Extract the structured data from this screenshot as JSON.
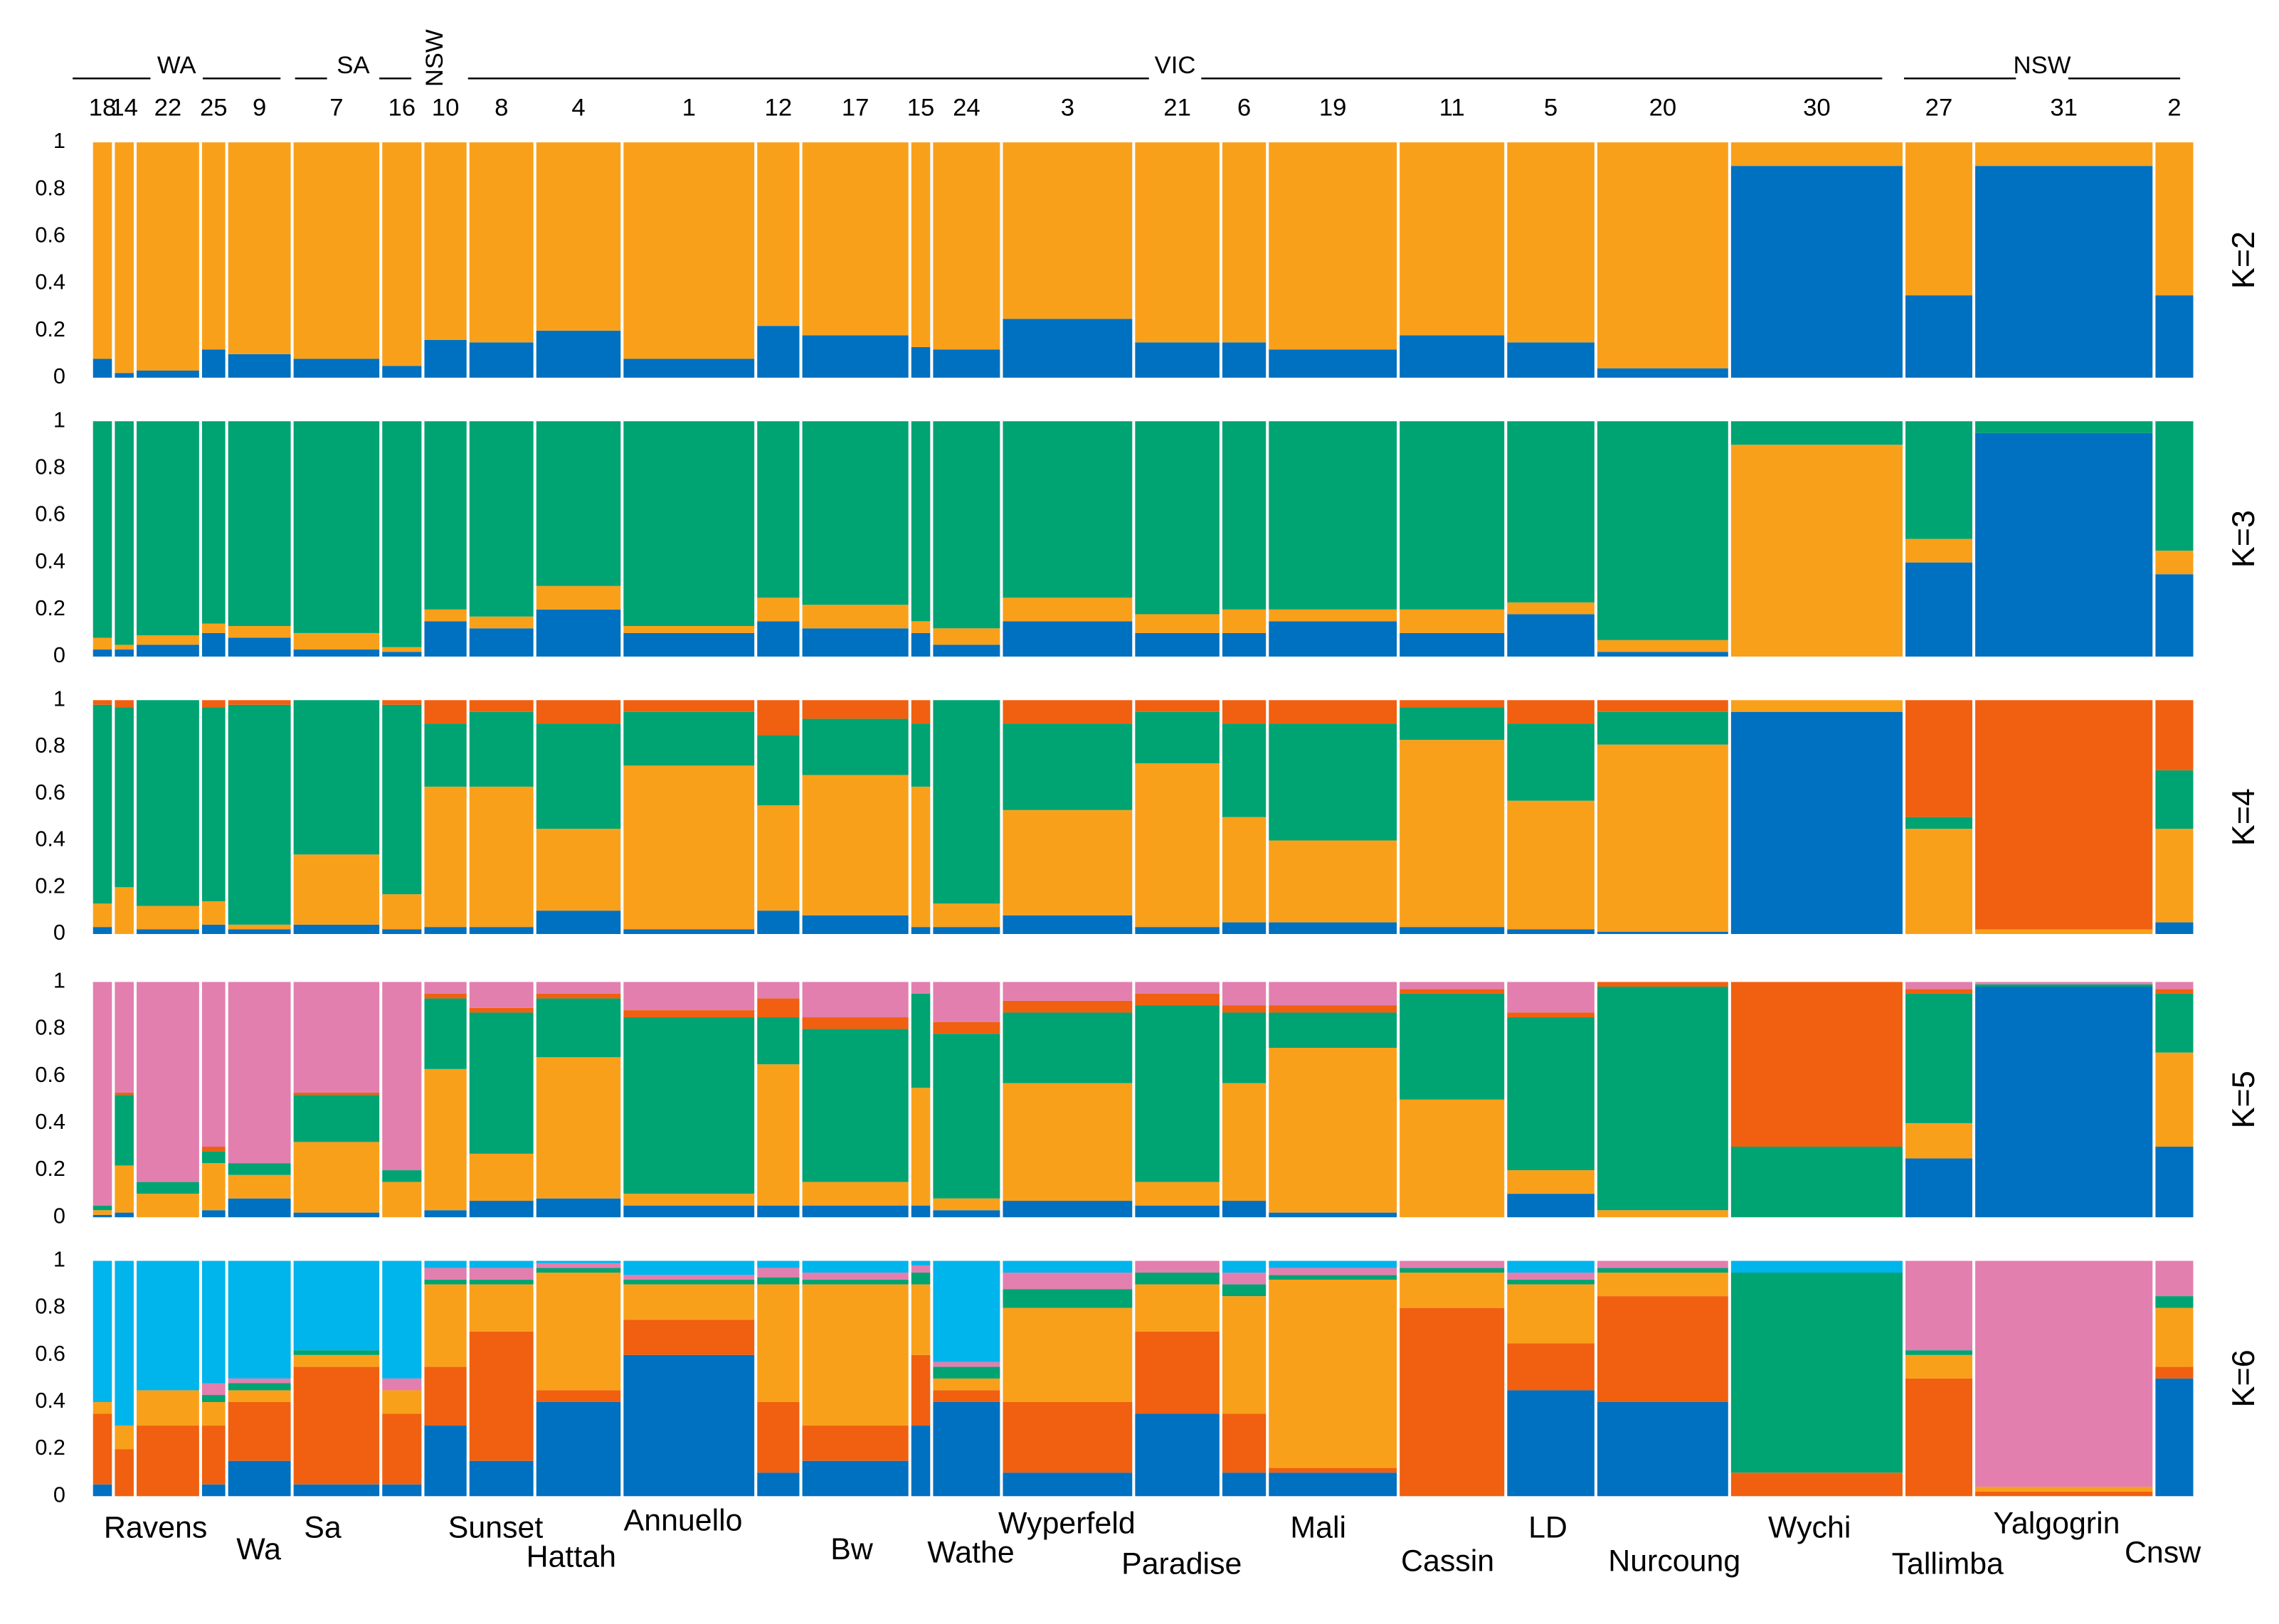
{
  "chart_data": {
    "type": "structure",
    "categories": [
      "18",
      "14",
      "22",
      "25",
      "9",
      "7",
      "16",
      "10",
      "8",
      "4",
      "1",
      "12",
      "17",
      "15",
      "24",
      "3",
      "21",
      "6",
      "19",
      "11",
      "5",
      "20",
      "30",
      "27",
      "31",
      "2"
    ],
    "regions": [
      "WA",
      "SA",
      "NSW",
      "VIC",
      "NSW"
    ],
    "sites": [
      "Ravens",
      "Wa",
      "Sa",
      "Sunset",
      "Hattah",
      "Annuello",
      "Bw",
      "Wathe",
      "Wyperfeld",
      "Paradise",
      "Mali",
      "Cassin",
      "LD",
      "Nurcoung",
      "Wychi",
      "Tallimba",
      "Yalgogrin",
      "Cnsw"
    ],
    "ylim": [
      0,
      1
    ],
    "yticks": [
      0,
      0.2,
      0.4,
      0.6,
      0.8,
      1
    ],
    "panels": [
      {
        "label": "K=2",
        "series": [
          {
            "color": "#0070c0",
            "values": [
              0.08,
              0.02,
              0.03,
              0.12,
              0.1,
              0.08,
              0.05,
              0.16,
              0.15,
              0.2,
              0.08,
              0.22,
              0.18,
              0.13,
              0.12,
              0.25,
              0.15,
              0.15,
              0.12,
              0.18,
              0.15,
              0.04,
              0.9,
              0.35,
              0.9,
              0.35
            ]
          },
          {
            "color": "#f9a01b",
            "values": [
              0.92,
              0.98,
              0.97,
              0.88,
              0.9,
              0.92,
              0.95,
              0.84,
              0.85,
              0.8,
              0.92,
              0.78,
              0.82,
              0.87,
              0.88,
              0.75,
              0.85,
              0.85,
              0.88,
              0.82,
              0.85,
              0.96,
              0.1,
              0.65,
              0.1,
              0.65
            ]
          }
        ]
      },
      {
        "label": "K=3",
        "series": [
          {
            "color": "#0070c0",
            "values": [
              0.03,
              0.03,
              0.05,
              0.1,
              0.08,
              0.03,
              0.02,
              0.15,
              0.12,
              0.2,
              0.1,
              0.15,
              0.12,
              0.1,
              0.05,
              0.15,
              0.1,
              0.1,
              0.15,
              0.1,
              0.18,
              0.02,
              0,
              0.4,
              0.95,
              0.35
            ]
          },
          {
            "color": "#f9a01b",
            "values": [
              0.05,
              0.02,
              0.04,
              0.04,
              0.05,
              0.07,
              0.02,
              0.05,
              0.05,
              0.1,
              0.03,
              0.1,
              0.1,
              0.05,
              0.07,
              0.1,
              0.08,
              0.1,
              0.05,
              0.1,
              0.05,
              0.05,
              0.9,
              0.1,
              0,
              0.1
            ]
          },
          {
            "color": "#00a372",
            "values": [
              0.92,
              0.95,
              0.91,
              0.86,
              0.87,
              0.9,
              0.96,
              0.8,
              0.83,
              0.7,
              0.87,
              0.75,
              0.78,
              0.85,
              0.88,
              0.75,
              0.82,
              0.8,
              0.8,
              0.8,
              0.77,
              0.93,
              0.1,
              0.5,
              0.05,
              0.55
            ]
          }
        ]
      },
      {
        "label": "K=4",
        "series": [
          {
            "color": "#0070c0",
            "values": [
              0.03,
              0,
              0.02,
              0.04,
              0.02,
              0.04,
              0.02,
              0.03,
              0.03,
              0.1,
              0.02,
              0.1,
              0.08,
              0.03,
              0.03,
              0.08,
              0.03,
              0.05,
              0.05,
              0.03,
              0.02,
              0.01,
              0.95,
              0,
              0,
              0.05
            ]
          },
          {
            "color": "#f9a01b",
            "values": [
              0.1,
              0.2,
              0.1,
              0.1,
              0.02,
              0.3,
              0.15,
              0.6,
              0.6,
              0.35,
              0.7,
              0.45,
              0.6,
              0.6,
              0.1,
              0.45,
              0.7,
              0.45,
              0.35,
              0.8,
              0.55,
              0.8,
              0.05,
              0.45,
              0.02,
              0.4
            ]
          },
          {
            "color": "#00a372",
            "values": [
              0.85,
              0.77,
              0.88,
              0.83,
              0.94,
              0.66,
              0.81,
              0.27,
              0.32,
              0.45,
              0.23,
              0.3,
              0.24,
              0.27,
              0.87,
              0.37,
              0.22,
              0.4,
              0.5,
              0.14,
              0.33,
              0.14,
              0,
              0.05,
              0,
              0.25
            ]
          },
          {
            "color": "#f06010",
            "values": [
              0.02,
              0.03,
              0,
              0.03,
              0.02,
              0,
              0.02,
              0.1,
              0.05,
              0.1,
              0.05,
              0.15,
              0.08,
              0.1,
              0,
              0.1,
              0.05,
              0.1,
              0.1,
              0.03,
              0.1,
              0.05,
              0,
              0.5,
              0.98,
              0.3
            ]
          }
        ]
      },
      {
        "label": "K=5",
        "series": [
          {
            "color": "#0070c0",
            "values": [
              0.01,
              0.02,
              0,
              0.03,
              0.08,
              0.02,
              0,
              0.03,
              0.07,
              0.08,
              0.05,
              0.05,
              0.05,
              0.05,
              0.03,
              0.07,
              0.05,
              0.07,
              0.02,
              0,
              0.1,
              0,
              0,
              0.25,
              0.98,
              0.3
            ]
          },
          {
            "color": "#f9a01b",
            "values": [
              0.02,
              0.2,
              0.1,
              0.2,
              0.1,
              0.3,
              0.15,
              0.6,
              0.2,
              0.6,
              0.05,
              0.6,
              0.1,
              0.5,
              0.05,
              0.5,
              0.1,
              0.5,
              0.7,
              0.5,
              0.1,
              0.03,
              0,
              0.15,
              0,
              0.4
            ]
          },
          {
            "color": "#00a372",
            "values": [
              0.02,
              0.3,
              0.05,
              0.05,
              0.05,
              0.2,
              0.05,
              0.3,
              0.6,
              0.25,
              0.75,
              0.2,
              0.65,
              0.4,
              0.7,
              0.3,
              0.75,
              0.3,
              0.15,
              0.45,
              0.65,
              0.95,
              0.3,
              0.55,
              0.01,
              0.25
            ]
          },
          {
            "color": "#f06010",
            "values": [
              0,
              0.01,
              0,
              0.02,
              0,
              0.01,
              0,
              0.02,
              0.02,
              0.02,
              0.03,
              0.08,
              0.05,
              0,
              0.05,
              0.05,
              0.05,
              0.03,
              0.03,
              0.02,
              0.02,
              0.02,
              0.7,
              0.02,
              0,
              0.02
            ]
          },
          {
            "color": "#e27fae",
            "values": [
              0.95,
              0.47,
              0.85,
              0.7,
              0.77,
              0.47,
              0.8,
              0.05,
              0.11,
              0.05,
              0.12,
              0.07,
              0.15,
              0.05,
              0.17,
              0.08,
              0.05,
              0.1,
              0.1,
              0.03,
              0.13,
              0,
              0,
              0.03,
              0.01,
              0.03
            ]
          }
        ]
      },
      {
        "label": "K=6",
        "series": [
          {
            "color": "#0070c0",
            "values": [
              0.05,
              0,
              0,
              0.05,
              0.15,
              0.05,
              0.05,
              0.3,
              0.15,
              0.4,
              0.6,
              0.1,
              0.15,
              0.3,
              0.4,
              0.1,
              0.35,
              0.1,
              0.1,
              0,
              0.45,
              0.4,
              0,
              0,
              0,
              0.5
            ]
          },
          {
            "color": "#f06010",
            "values": [
              0.3,
              0.2,
              0.3,
              0.25,
              0.25,
              0.5,
              0.3,
              0.25,
              0.55,
              0.05,
              0.15,
              0.3,
              0.15,
              0.3,
              0.05,
              0.3,
              0.35,
              0.25,
              0.02,
              0.8,
              0.2,
              0.45,
              0.1,
              0.5,
              0.02,
              0.05
            ]
          },
          {
            "color": "#f9a01b",
            "values": [
              0.05,
              0.1,
              0.15,
              0.1,
              0.05,
              0.05,
              0.1,
              0.35,
              0.2,
              0.5,
              0.15,
              0.5,
              0.6,
              0.3,
              0.05,
              0.4,
              0.2,
              0.5,
              0.8,
              0.15,
              0.25,
              0.1,
              0,
              0.1,
              0.02,
              0.25
            ]
          },
          {
            "color": "#00a372",
            "values": [
              0,
              0,
              0,
              0.03,
              0.03,
              0.02,
              0,
              0.02,
              0.02,
              0.02,
              0.02,
              0.03,
              0.02,
              0.05,
              0.05,
              0.08,
              0.05,
              0.05,
              0.02,
              0.02,
              0.02,
              0.02,
              0.85,
              0.02,
              0,
              0.05
            ]
          },
          {
            "color": "#e27fae",
            "values": [
              0,
              0,
              0,
              0.05,
              0.02,
              0,
              0.05,
              0.05,
              0.05,
              0.02,
              0.02,
              0.04,
              0.03,
              0.03,
              0.02,
              0.07,
              0.05,
              0.05,
              0.03,
              0.03,
              0.03,
              0.03,
              0,
              0.38,
              0.96,
              0.15
            ]
          },
          {
            "color": "#00b4ec",
            "values": [
              0.6,
              0.7,
              0.55,
              0.52,
              0.5,
              0.38,
              0.5,
              0.03,
              0.03,
              0.01,
              0.06,
              0.03,
              0.05,
              0.02,
              0.43,
              0.05,
              0,
              0.05,
              0.03,
              0,
              0.05,
              0,
              0.05,
              0,
              0,
              0
            ]
          }
        ]
      }
    ]
  }
}
